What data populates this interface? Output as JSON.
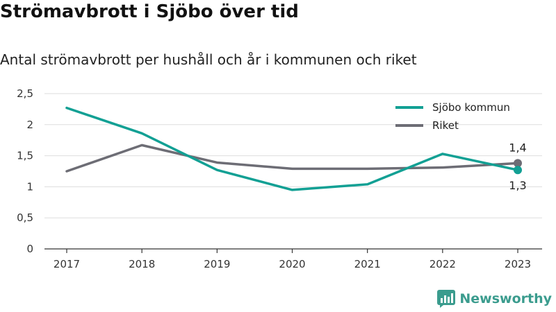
{
  "title": "Strömavbrott i Sjöbo över tid",
  "subtitle": "Antal strömavbrott per hushåll och år i kommunen och riket",
  "brand": "Newsworthy",
  "colors": {
    "sjobo": "#12a094",
    "riket": "#6d6d75",
    "brand": "#3b9c8e",
    "grid": "#dddddd"
  },
  "chart_data": {
    "type": "line",
    "categories": [
      "2017",
      "2018",
      "2019",
      "2020",
      "2021",
      "2022",
      "2023"
    ],
    "series": [
      {
        "name": "Sjöbo kommun",
        "values": [
          2.27,
          1.86,
          1.27,
          0.95,
          1.04,
          1.53,
          1.27
        ],
        "end_label": "1,3"
      },
      {
        "name": "Riket",
        "values": [
          1.25,
          1.67,
          1.39,
          1.29,
          1.29,
          1.31,
          1.38
        ],
        "end_label": "1,4"
      }
    ],
    "y_ticks": [
      "0",
      "0,5",
      "1",
      "1,5",
      "2",
      "2,5"
    ],
    "ylim": [
      0,
      2.5
    ],
    "grid": true,
    "legend": "top-right"
  }
}
